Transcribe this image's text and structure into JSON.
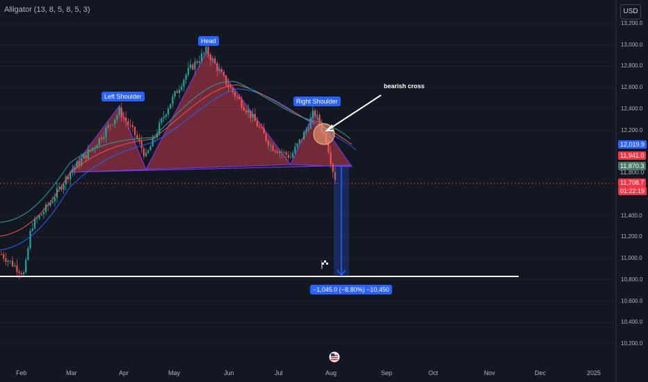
{
  "indicator": {
    "title": "Alligator (13, 8, 5, 8, 5, 3)"
  },
  "currency_button": {
    "label": "USD"
  },
  "colors": {
    "background": "#131722",
    "pattern_fill": "#c23b4b",
    "blue_tag": "#2962ff",
    "red_tag": "#f23645",
    "green_tag": "#4a7a6a",
    "up_candle": "#26a69a",
    "down_candle": "#ef5350"
  },
  "annotations": {
    "left_shoulder": "Left Shoulder",
    "head": "Head",
    "right_shoulder": "Right Shoulder",
    "bearish_cross": "bearish cross",
    "measurement": "−1,045.0 (−8.80%) −10,450"
  },
  "price_tags": {
    "blue": "12,019.9",
    "red": "11,941.0",
    "green": "11,870.3",
    "hidden": "11,800.0",
    "last": "11,708.7",
    "countdown": "01:22:19"
  },
  "chart_data": {
    "type": "candlestick",
    "y_axis_ticks": [
      "13,200.0",
      "13,000.0",
      "12,800.0",
      "12,600.0",
      "12,400.0",
      "12,200.0",
      "11,400.0",
      "11,200.0",
      "11,000.0",
      "10,800.0",
      "10,600.0",
      "10,400.0",
      "10,200.0"
    ],
    "x_axis_ticks": [
      "Feb",
      "Mar",
      "Apr",
      "May",
      "Jun",
      "Jul",
      "Aug",
      "Sep",
      "Oct",
      "Nov",
      "Dec",
      "2025"
    ],
    "ylim": [
      10150,
      13300
    ],
    "pattern": {
      "left_shoulder_peak": 12420,
      "head_peak": 12950,
      "right_shoulder_peak": 12380,
      "neckline": 11900,
      "target": 10830
    },
    "last_price": 11708.7
  }
}
